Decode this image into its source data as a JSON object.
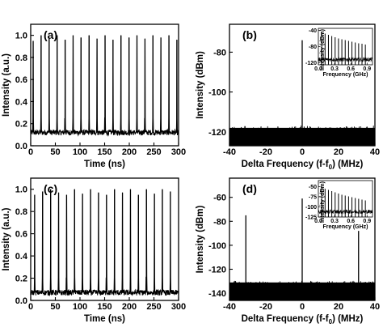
{
  "chart_data": [
    {
      "panel": "(a)",
      "type": "line",
      "xlabel": "Time (ns)",
      "ylabel": "Intensity (a.u.)",
      "xlim": [
        0,
        300
      ],
      "ylim": [
        0,
        1.1
      ],
      "xticks": [
        "0",
        "50",
        "100",
        "150",
        "200",
        "250",
        "300"
      ],
      "yticks": [
        "0.0",
        "0.2",
        "0.4",
        "0.6",
        "0.8",
        "1.0"
      ],
      "xtick_values": [
        0,
        50,
        100,
        150,
        200,
        250,
        300
      ],
      "ytick_values": [
        0,
        0.2,
        0.4,
        0.6,
        0.8,
        1.0
      ],
      "baseline": 0.12,
      "pulse_period_ns": 16.2,
      "first_pulse_ns": 5,
      "pulse_peaks": [
        0.95,
        1.0,
        0.97,
        1.0,
        0.96,
        1.0,
        0.98,
        1.0,
        0.97,
        1.0,
        0.96,
        1.0,
        0.98,
        1.0,
        0.97,
        1.0,
        0.98,
        1.0,
        0.96
      ]
    },
    {
      "panel": "(b)",
      "type": "line",
      "xlabel": "Delta Frequency (f-f",
      "xlabel_sub": "0",
      "xlabel_tail": ") (MHz)",
      "ylabel": "Intensity (dBm)",
      "xlim": [
        -40,
        40
      ],
      "ylim": [
        -127,
        -66
      ],
      "xticks": [
        "-40",
        "-20",
        "0",
        "20",
        "40"
      ],
      "yticks": [
        "-120",
        "-100",
        "-80"
      ],
      "xtick_values": [
        -40,
        -20,
        0,
        20,
        40
      ],
      "ytick_values": [
        -120,
        -100,
        -80
      ],
      "noise_floor": -119,
      "peaks": [
        {
          "x": 0,
          "y": -74
        }
      ],
      "inset": {
        "xlabel": "Frequency (GHz)",
        "ylabel": "Intensity (dBm)",
        "xlim": [
          0,
          1.0
        ],
        "ylim": [
          -125,
          -35
        ],
        "xticks": [
          "0.0",
          "0.3",
          "0.6",
          "0.9"
        ],
        "yticks": [
          "-40",
          "-80",
          "-120"
        ],
        "xtick_values": [
          0,
          0.3,
          0.6,
          0.9
        ],
        "ytick_values": [
          -40,
          -80,
          -120
        ],
        "comb_start_ghz": 0.062,
        "comb_spacing_ghz": 0.062,
        "comb_peaks_dbm": [
          -45,
          -48,
          -51,
          -54,
          -57,
          -60,
          -62,
          -64,
          -66,
          -68,
          -70,
          -72,
          -73,
          -75
        ]
      }
    },
    {
      "panel": "(c)",
      "type": "line",
      "xlabel": "Time (ns)",
      "ylabel": "Intensity (a.u.)",
      "xlim": [
        0,
        300
      ],
      "ylim": [
        0,
        1.1
      ],
      "xticks": [
        "0",
        "50",
        "100",
        "150",
        "200",
        "250",
        "300"
      ],
      "yticks": [
        "0.0",
        "0.2",
        "0.4",
        "0.6",
        "0.8",
        "1.0"
      ],
      "xtick_values": [
        0,
        50,
        100,
        150,
        200,
        250,
        300
      ],
      "ytick_values": [
        0,
        0.2,
        0.4,
        0.6,
        0.8,
        1.0
      ],
      "baseline": 0.07,
      "pulse_period_ns": 16.2,
      "first_pulse_ns": 8,
      "pulse_peaks": [
        0.95,
        0.98,
        1.0,
        0.97,
        0.95,
        1.0,
        0.96,
        1.0,
        0.97,
        0.95,
        1.0,
        0.97,
        1.0,
        0.95,
        1.0,
        0.96,
        1.0,
        0.98
      ]
    },
    {
      "panel": "(d)",
      "type": "line",
      "xlabel": "Delta Frequency (f-f",
      "xlabel_sub": "0",
      "xlabel_tail": ") (MHz)",
      "ylabel": "Intensity (dBm)",
      "xlim": [
        -40,
        40
      ],
      "ylim": [
        -146,
        -44
      ],
      "xticks": [
        "-40",
        "-20",
        "0",
        "20",
        "40"
      ],
      "yticks": [
        "-140",
        "-120",
        "-100",
        "-80",
        "-60"
      ],
      "xtick_values": [
        -40,
        -20,
        0,
        20,
        40
      ],
      "ytick_values": [
        -140,
        -120,
        -100,
        -80,
        -60
      ],
      "noise_floor": -132,
      "peaks": [
        {
          "x": -31,
          "y": -75
        },
        {
          "x": 0,
          "y": -61
        },
        {
          "x": 31,
          "y": -88
        }
      ],
      "inset": {
        "xlabel": "Frequency (GHz)",
        "ylabel": "Intensity (dBm)",
        "xlim": [
          0,
          1.0
        ],
        "ylim": [
          -125,
          -35
        ],
        "xticks": [
          "0.0",
          "0.3",
          "0.6",
          "0.9"
        ],
        "yticks": [
          "-50",
          "-75",
          "-100",
          "-125"
        ],
        "xtick_values": [
          0,
          0.3,
          0.6,
          0.9
        ],
        "ytick_values": [
          -50,
          -75,
          -100,
          -125
        ],
        "comb_start_ghz": 0.062,
        "comb_spacing_ghz": 0.062,
        "comb_peaks_dbm": [
          -50,
          -55,
          -58,
          -61,
          -64,
          -67,
          -70,
          -72,
          -74,
          -76,
          -78,
          -80,
          -82,
          -84
        ]
      }
    }
  ]
}
